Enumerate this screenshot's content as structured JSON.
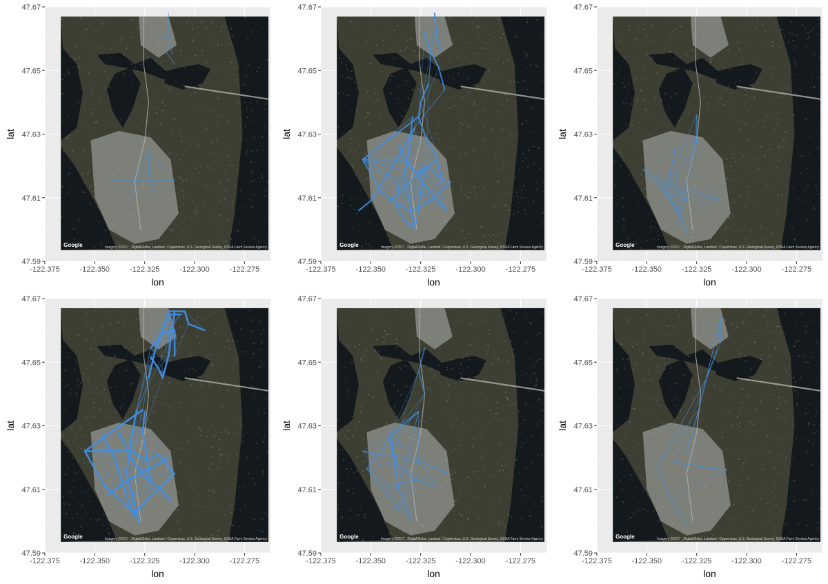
{
  "colors": {
    "panel_bg": "#ebebeb",
    "grid_major": "#ffffff",
    "grid_minor": "#f2f2f2",
    "route": "#3f8fe8",
    "map_water": "#14191d",
    "map_land": "#3e3f33",
    "map_urban": "#7d8079"
  },
  "map": {
    "provider_logo": "Google",
    "attribution": "Imagery ©2017 , DigitalGlobe, Landsat / Copernicus, U.S. Geological Survey, USDA Farm Service Agency",
    "extent": {
      "lon": [
        -122.367,
        -122.263
      ],
      "lat": [
        47.5935,
        47.667
      ]
    }
  },
  "chart_data": [
    {
      "type": "line",
      "panel": 1,
      "xlabel": "lon",
      "ylabel": "lat",
      "xlim": [
        -122.375,
        -122.262
      ],
      "ylim": [
        47.59,
        47.67
      ],
      "xticks": [
        "-122.375",
        "-122.350",
        "-122.325",
        "-122.300",
        "-122.275"
      ],
      "yticks": [
        "47.59",
        "47.61",
        "47.63",
        "47.65",
        "47.67"
      ],
      "grid": true,
      "density": 0.15,
      "series": [
        {
          "x": [
            -122.342,
            -122.33,
            -122.322,
            -122.31
          ],
          "y": [
            47.6155,
            47.6155,
            47.6155,
            47.6155
          ]
        },
        {
          "x": [
            -122.323,
            -122.323,
            -122.321
          ],
          "y": [
            47.6245,
            47.617,
            47.612
          ]
        },
        {
          "x": [
            -122.327,
            -122.329,
            -122.331
          ],
          "y": [
            47.62,
            47.615,
            47.61
          ]
        },
        {
          "x": [
            -122.313,
            -122.313,
            -122.311
          ],
          "y": [
            47.668,
            47.66,
            47.655
          ]
        },
        {
          "x": [
            -122.317,
            -122.313
          ],
          "y": [
            47.6605,
            47.6605
          ]
        },
        {
          "x": [
            -122.315,
            -122.31
          ],
          "y": [
            47.6565,
            47.652
          ]
        }
      ]
    },
    {
      "type": "line",
      "panel": 2,
      "xlabel": "lon",
      "ylabel": "lat",
      "xlim": [
        -122.375,
        -122.262
      ],
      "ylim": [
        47.59,
        47.67
      ],
      "xticks": [
        "-122.375",
        "-122.350",
        "-122.325",
        "-122.300",
        "-122.275"
      ],
      "yticks": [
        "47.59",
        "47.61",
        "47.63",
        "47.65",
        "47.67"
      ],
      "grid": true,
      "density": 0.75,
      "series": [
        {
          "x": [
            -122.326,
            -122.354,
            -122.345,
            -122.33,
            -122.32,
            -122.31
          ],
          "y": [
            47.6355,
            47.622,
            47.612,
            47.6055,
            47.609,
            47.615
          ]
        },
        {
          "x": [
            -122.354,
            -122.333,
            -122.327,
            -122.322,
            -122.313
          ],
          "y": [
            47.622,
            47.622,
            47.618,
            47.62,
            47.6155
          ]
        },
        {
          "x": [
            -122.329,
            -122.331,
            -122.333,
            -122.331,
            -122.328
          ],
          "y": [
            47.6355,
            47.625,
            47.6175,
            47.61,
            47.6
          ]
        },
        {
          "x": [
            -122.328,
            -122.339,
            -122.35,
            -122.356
          ],
          "y": [
            47.632,
            47.62,
            47.609,
            47.606
          ]
        },
        {
          "x": [
            -122.321,
            -122.325,
            -122.326,
            -122.323,
            -122.318,
            -122.314
          ],
          "y": [
            47.646,
            47.64,
            47.635,
            47.63,
            47.624,
            47.615
          ]
        },
        {
          "x": [
            -122.336,
            -122.33,
            -122.324,
            -122.318,
            -122.312
          ],
          "y": [
            47.626,
            47.62,
            47.615,
            47.61,
            47.606
          ]
        },
        {
          "x": [
            -122.336,
            -122.337,
            -122.331,
            -122.327,
            -122.325,
            -122.322
          ],
          "y": [
            47.614,
            47.607,
            47.601,
            47.6025,
            47.612,
            47.62
          ]
        },
        {
          "x": [
            -122.341,
            -122.335,
            -122.329,
            -122.323,
            -122.317
          ],
          "y": [
            47.609,
            47.612,
            47.616,
            47.619,
            47.622
          ]
        },
        {
          "x": [
            -122.323,
            -122.32,
            -122.316,
            -122.313
          ],
          "y": [
            47.662,
            47.656,
            47.651,
            47.644
          ]
        },
        {
          "x": [
            -122.318,
            -122.317,
            -122.315
          ],
          "y": [
            47.668,
            47.661,
            47.656
          ]
        }
      ]
    },
    {
      "type": "line",
      "panel": 3,
      "xlabel": "lon",
      "ylabel": "lat",
      "xlim": [
        -122.375,
        -122.262
      ],
      "ylim": [
        47.59,
        47.67
      ],
      "xticks": [
        "-122.375",
        "-122.350",
        "-122.325",
        "-122.300",
        "-122.275"
      ],
      "yticks": [
        "47.59",
        "47.61",
        "47.63",
        "47.65",
        "47.67"
      ],
      "grid": true,
      "density": 0.3,
      "series": [
        {
          "x": [
            -122.352,
            -122.344,
            -122.334,
            -122.33
          ],
          "y": [
            47.619,
            47.614,
            47.606,
            47.599
          ]
        },
        {
          "x": [
            -122.342,
            -122.33,
            -122.314
          ],
          "y": [
            47.612,
            47.6095,
            47.6095
          ]
        },
        {
          "x": [
            -122.336,
            -122.339,
            -122.33
          ],
          "y": [
            47.625,
            47.615,
            47.61
          ]
        },
        {
          "x": [
            -122.325,
            -122.325,
            -122.327
          ],
          "y": [
            47.636,
            47.628,
            47.622
          ]
        },
        {
          "x": [
            -122.346,
            -122.34,
            -122.334
          ],
          "y": [
            47.617,
            47.612,
            47.604
          ]
        }
      ]
    },
    {
      "type": "line",
      "panel": 4,
      "xlabel": "lon",
      "ylabel": "lat",
      "xlim": [
        -122.375,
        -122.262
      ],
      "ylim": [
        47.59,
        47.67
      ],
      "xticks": [
        "-122.375",
        "-122.350",
        "-122.325",
        "-122.300",
        "-122.275"
      ],
      "yticks": [
        "47.59",
        "47.61",
        "47.63",
        "47.65",
        "47.67"
      ],
      "grid": true,
      "density": 1.0,
      "series": [
        {
          "x": [
            -122.326,
            -122.355,
            -122.345,
            -122.33,
            -122.32,
            -122.31
          ],
          "y": [
            47.635,
            47.622,
            47.611,
            47.6025,
            47.609,
            47.615
          ]
        },
        {
          "x": [
            -122.354,
            -122.333,
            -122.324,
            -122.318,
            -122.311
          ],
          "y": [
            47.622,
            47.6225,
            47.619,
            47.621,
            47.6155
          ]
        },
        {
          "x": [
            -122.329,
            -122.332,
            -122.334,
            -122.331,
            -122.328
          ],
          "y": [
            47.635,
            47.625,
            47.615,
            47.608,
            47.5995
          ]
        },
        {
          "x": [
            -122.313,
            -122.305,
            -122.303,
            -122.295
          ],
          "y": [
            47.666,
            47.666,
            47.662,
            47.66
          ]
        },
        {
          "x": [
            -122.322,
            -122.318,
            -122.316,
            -122.313,
            -122.31
          ],
          "y": [
            47.6515,
            47.648,
            47.645,
            47.652,
            47.666
          ]
        },
        {
          "x": [
            -122.323,
            -122.32,
            -122.317,
            -122.31,
            -122.31
          ],
          "y": [
            47.645,
            47.653,
            47.659,
            47.66,
            47.652
          ]
        },
        {
          "x": [
            -122.338,
            -122.331,
            -122.325,
            -122.317,
            -122.312
          ],
          "y": [
            47.628,
            47.619,
            47.614,
            47.61,
            47.6065
          ]
        },
        {
          "x": [
            -122.343,
            -122.333,
            -122.321,
            -122.313
          ],
          "y": [
            47.6085,
            47.613,
            47.617,
            47.62
          ]
        },
        {
          "x": [
            -122.346,
            -122.34,
            -122.333,
            -122.33
          ],
          "y": [
            47.627,
            47.6195,
            47.606,
            47.6015
          ]
        },
        {
          "x": [
            -122.325,
            -122.326,
            -122.324,
            -122.322
          ],
          "y": [
            47.6345,
            47.628,
            47.62,
            47.612
          ]
        },
        {
          "x": [
            -122.322,
            -122.318,
            -122.313,
            -122.307
          ],
          "y": [
            47.6545,
            47.657,
            47.665,
            47.665
          ]
        }
      ]
    },
    {
      "type": "line",
      "panel": 5,
      "xlabel": "lon",
      "ylabel": "lat",
      "xlim": [
        -122.375,
        -122.262
      ],
      "ylim": [
        47.59,
        47.67
      ],
      "xticks": [
        "-122.375",
        "-122.350",
        "-122.325",
        "-122.300",
        "-122.275"
      ],
      "yticks": [
        "47.59",
        "47.61",
        "47.63",
        "47.65",
        "47.67"
      ],
      "grid": true,
      "density": 0.45,
      "series": [
        {
          "x": [
            -122.326,
            -122.34,
            -122.336,
            -122.33
          ],
          "y": [
            47.6345,
            47.627,
            47.61,
            47.6005
          ]
        },
        {
          "x": [
            -122.354,
            -122.34,
            -122.326,
            -122.311
          ],
          "y": [
            47.622,
            47.6205,
            47.619,
            47.615
          ]
        },
        {
          "x": [
            -122.341,
            -122.337,
            -122.328,
            -122.317
          ],
          "y": [
            47.6265,
            47.618,
            47.613,
            47.611
          ]
        },
        {
          "x": [
            -122.352,
            -122.344,
            -122.336
          ],
          "y": [
            47.6165,
            47.6105,
            47.6035
          ]
        },
        {
          "x": [
            -122.323,
            -122.326,
            -122.323
          ],
          "y": [
            47.6545,
            47.647,
            47.64
          ]
        }
      ]
    },
    {
      "type": "line",
      "panel": 6,
      "xlabel": "lon",
      "ylabel": "lat",
      "xlim": [
        -122.375,
        -122.262
      ],
      "ylim": [
        47.59,
        47.67
      ],
      "xticks": [
        "-122.375",
        "-122.350",
        "-122.325",
        "-122.300",
        "-122.275"
      ],
      "yticks": [
        "47.59",
        "47.61",
        "47.63",
        "47.65",
        "47.67"
      ],
      "grid": true,
      "density": 0.25,
      "series": [
        {
          "x": [
            -122.315,
            -122.32,
            -122.324,
            -122.33
          ],
          "y": [
            47.6535,
            47.645,
            47.635,
            47.6215
          ]
        },
        {
          "x": [
            -122.345,
            -122.338,
            -122.33
          ],
          "y": [
            47.617,
            47.607,
            47.599
          ]
        },
        {
          "x": [
            -122.336,
            -122.322,
            -122.31
          ],
          "y": [
            47.6185,
            47.617,
            47.616
          ]
        },
        {
          "x": [
            -122.313,
            -122.313
          ],
          "y": [
            47.664,
            47.656
          ]
        }
      ]
    }
  ]
}
